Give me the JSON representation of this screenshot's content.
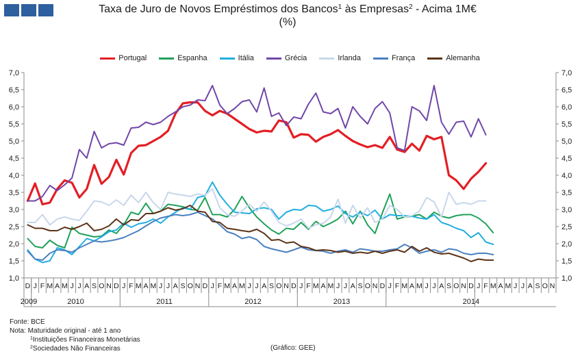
{
  "header": {
    "logo_squares": [
      1,
      2,
      3
    ]
  },
  "chart_data": {
    "type": "line",
    "title_main": "Taxa de Juro de Novos Empréstimos dos Bancos",
    "title_sup1": "1",
    "title_mid": " às Empresas",
    "title_sup2": "2",
    "title_end": " - Acima 1M€",
    "subtitle": "(%)",
    "ylim": [
      1.0,
      7.0
    ],
    "yticks": [
      "7,0",
      "6,5",
      "6,0",
      "5,5",
      "5,0",
      "4,5",
      "4,0",
      "3,5",
      "3,0",
      "2,5",
      "2,0",
      "1,5",
      "1,0"
    ],
    "month_labels": [
      "D",
      "J",
      "F",
      "M",
      "A",
      "M",
      "J",
      "J",
      "A",
      "S",
      "O",
      "N",
      "D",
      "J",
      "F",
      "M",
      "A",
      "M",
      "J",
      "J",
      "A",
      "S",
      "O",
      "N",
      "D",
      "J",
      "F",
      "M",
      "A",
      "M",
      "J",
      "J",
      "A",
      "S",
      "O",
      "N",
      "D",
      "J",
      "F",
      "M",
      "A",
      "M",
      "J",
      "J",
      "A",
      "S",
      "O",
      "N",
      "D",
      "J",
      "F",
      "M",
      "A",
      "M",
      "J",
      "J",
      "A",
      "S",
      "O",
      "N",
      "D",
      "J",
      "F",
      "M",
      "A",
      "M",
      "J",
      "J",
      "A",
      "S",
      "O",
      "N"
    ],
    "years": [
      "2009",
      "2010",
      "2011",
      "2012",
      "2013",
      "2014"
    ],
    "series": [
      {
        "name": "Portugal",
        "color": "#e31e24",
        "width": 3.2,
        "values": [
          3.25,
          3.76,
          3.15,
          3.2,
          3.6,
          3.85,
          3.78,
          3.35,
          3.6,
          4.3,
          3.75,
          3.95,
          4.45,
          4.02,
          4.65,
          4.86,
          4.88,
          5.0,
          5.12,
          5.3,
          5.8,
          6.1,
          6.13,
          6.13,
          5.88,
          5.75,
          5.88,
          5.8,
          5.65,
          5.5,
          5.35,
          5.25,
          5.3,
          5.28,
          5.6,
          5.55,
          5.1,
          5.2,
          5.18,
          4.98,
          5.12,
          5.2,
          5.32,
          5.15,
          5.0,
          4.9,
          4.82,
          4.88,
          4.8,
          5.12,
          4.75,
          4.68,
          4.92,
          4.72,
          5.15,
          5.05,
          5.12,
          4.0,
          3.85,
          3.6,
          3.9,
          4.1,
          4.35
        ]
      },
      {
        "name": "Espanha",
        "color": "#1fa05a",
        "width": 2,
        "values": [
          2.15,
          1.92,
          1.88,
          2.1,
          1.95,
          1.88,
          2.48,
          2.3,
          2.25,
          2.2,
          2.22,
          2.4,
          2.3,
          2.55,
          2.92,
          2.85,
          3.18,
          2.88,
          2.95,
          3.15,
          3.12,
          3.08,
          3.0,
          2.98,
          3.35,
          2.85,
          2.85,
          2.78,
          3.0,
          3.38,
          3.05,
          2.78,
          2.58,
          2.4,
          2.28,
          2.45,
          2.42,
          2.62,
          2.42,
          2.65,
          2.5,
          2.6,
          2.72,
          2.95,
          2.58,
          2.95,
          2.55,
          2.3,
          2.9,
          3.45,
          2.72,
          2.78,
          2.8,
          2.85,
          2.72,
          2.92,
          2.8,
          2.75,
          2.82,
          2.85,
          2.85,
          2.75,
          2.58,
          2.32
        ]
      },
      {
        "name": "Itália",
        "color": "#21aee0",
        "width": 2,
        "values": [
          1.82,
          1.55,
          1.45,
          1.5,
          1.88,
          1.82,
          1.68,
          1.92,
          2.15,
          2.08,
          2.2,
          2.35,
          2.4,
          2.6,
          2.48,
          2.58,
          2.62,
          2.72,
          2.6,
          2.78,
          2.92,
          3.05,
          3.0,
          3.35,
          3.4,
          3.8,
          3.42,
          3.15,
          2.92,
          2.9,
          2.88,
          3.02,
          3.05,
          3.0,
          2.72,
          2.92,
          3.0,
          2.98,
          3.12,
          3.1,
          2.95,
          3.0,
          3.1,
          2.88,
          2.78,
          2.92,
          2.82,
          2.98,
          2.72,
          2.85,
          2.82,
          2.82,
          2.8,
          2.75,
          2.72,
          2.85,
          2.62,
          2.55,
          2.45,
          2.38,
          2.18,
          2.32,
          2.05,
          1.98
        ]
      },
      {
        "name": "Grécia",
        "color": "#7046a8",
        "width": 2,
        "values": [
          3.25,
          3.25,
          3.38,
          3.7,
          3.55,
          3.72,
          3.92,
          4.75,
          4.5,
          5.28,
          4.8,
          4.92,
          4.95,
          4.88,
          5.38,
          5.4,
          5.55,
          5.48,
          5.55,
          5.72,
          5.85,
          6.0,
          6.05,
          6.2,
          6.18,
          6.62,
          6.05,
          5.8,
          5.95,
          6.15,
          6.2,
          5.85,
          6.55,
          5.72,
          5.82,
          5.45,
          5.7,
          5.65,
          6.08,
          6.4,
          5.85,
          5.8,
          5.95,
          5.38,
          6.0,
          5.72,
          5.5,
          5.95,
          6.15,
          5.82,
          4.8,
          4.72,
          6.0,
          5.88,
          5.6,
          6.62,
          5.55,
          5.2,
          5.55,
          5.58,
          5.12,
          5.65,
          5.18
        ]
      },
      {
        "name": "Irlanda",
        "color": "#c8d7ea",
        "width": 2,
        "values": [
          2.62,
          2.62,
          2.85,
          2.55,
          2.72,
          2.78,
          2.72,
          2.68,
          2.95,
          3.25,
          3.22,
          3.12,
          3.28,
          3.12,
          3.42,
          3.2,
          3.5,
          3.2,
          3.0,
          3.5,
          3.45,
          3.42,
          3.38,
          3.45,
          3.42,
          3.6,
          3.05,
          2.85,
          2.8,
          2.95,
          3.15,
          2.95,
          3.22,
          2.95,
          2.62,
          2.52,
          2.6,
          2.72,
          2.45,
          2.55,
          2.6,
          2.78,
          3.3,
          2.6,
          3.12,
          2.75,
          3.05,
          2.62,
          2.72,
          3.12,
          3.0,
          2.78,
          2.82,
          2.95,
          3.35,
          3.22,
          2.78,
          3.5,
          3.15,
          3.2,
          3.15,
          3.25,
          3.25
        ]
      },
      {
        "name": "França",
        "color": "#4a80c0",
        "width": 2,
        "values": [
          1.78,
          1.55,
          1.52,
          1.72,
          1.82,
          1.8,
          1.75,
          1.88,
          1.98,
          2.08,
          2.05,
          2.08,
          2.12,
          2.18,
          2.28,
          2.38,
          2.52,
          2.65,
          2.75,
          2.8,
          2.85,
          2.82,
          2.85,
          2.92,
          2.82,
          2.72,
          2.55,
          2.35,
          2.28,
          2.15,
          2.2,
          2.12,
          1.92,
          1.85,
          1.8,
          1.75,
          1.82,
          1.9,
          1.82,
          1.8,
          1.78,
          1.72,
          1.78,
          1.82,
          1.75,
          1.85,
          1.82,
          1.78,
          1.78,
          1.82,
          1.85,
          1.98,
          1.88,
          1.72,
          1.78,
          1.82,
          1.75,
          1.85,
          1.82,
          1.72,
          1.68,
          1.72,
          1.72,
          1.68
        ]
      },
      {
        "name": "Alemanha",
        "color": "#5b3318",
        "width": 2,
        "values": [
          2.55,
          2.45,
          2.45,
          2.38,
          2.38,
          2.48,
          2.42,
          2.5,
          2.6,
          2.38,
          2.42,
          2.52,
          2.72,
          2.55,
          2.7,
          2.68,
          2.88,
          2.88,
          2.95,
          3.05,
          2.98,
          3.02,
          3.12,
          2.95,
          2.92,
          2.65,
          2.62,
          2.45,
          2.42,
          2.38,
          2.35,
          2.42,
          2.3,
          2.1,
          2.12,
          2.02,
          2.05,
          1.92,
          1.88,
          1.8,
          1.82,
          1.8,
          1.75,
          1.78,
          1.72,
          1.75,
          1.72,
          1.78,
          1.72,
          1.78,
          1.82,
          1.75,
          1.92,
          1.78,
          1.88,
          1.75,
          1.7,
          1.72,
          1.65,
          1.58,
          1.48,
          1.55,
          1.52,
          1.52
        ]
      }
    ]
  },
  "notes": {
    "source": "Fonte: BCE",
    "note": "Nota: Maturidade original - até 1 ano",
    "fn1_sup": "1",
    "fn1_text": "Instituições Financeiras Monetárias",
    "fn2_sup": "2",
    "fn2_text": "Sociedades Não Financeiras",
    "credit": "(Gráfico: GEE)"
  }
}
